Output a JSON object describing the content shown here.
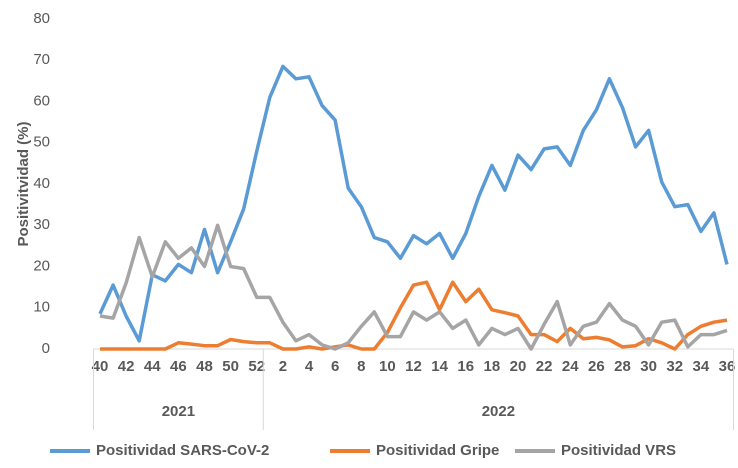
{
  "chart_data": {
    "type": "line",
    "y_label": "Positivitvidad (%)",
    "categories": [
      "40",
      null,
      "42",
      null,
      "44",
      null,
      "46",
      null,
      "48",
      null,
      "50",
      null,
      "52",
      null,
      "2",
      null,
      "4",
      null,
      "6",
      null,
      "8",
      null,
      "10",
      null,
      "12",
      null,
      "14",
      null,
      "16",
      null,
      "18",
      null,
      "20",
      null,
      "22",
      null,
      "24",
      null,
      "26",
      null,
      "28",
      null,
      "30",
      null,
      "32",
      null,
      "34",
      null,
      "36"
    ],
    "x_groups": [
      {
        "label": "2021",
        "count": 13
      },
      {
        "label": "2022",
        "count": 36
      }
    ],
    "series": [
      {
        "name": "Positividad SARS-CoV-2",
        "color": "#5b9bd5",
        "values": [
          8.5,
          15.5,
          8,
          2,
          18,
          16.5,
          20.5,
          18.5,
          29,
          18.5,
          26,
          34,
          48,
          61,
          68.5,
          65.5,
          66,
          59,
          55.5,
          39,
          34.5,
          27,
          26,
          22,
          27.5,
          25.5,
          28,
          22,
          28,
          37,
          44.5,
          38.5,
          47,
          43.5,
          48.5,
          49,
          44.5,
          53,
          58,
          65.5,
          58.5,
          49,
          53,
          40.5,
          34.5,
          35,
          28.5,
          33,
          20.5
        ]
      },
      {
        "name": "Positividad Gripe",
        "color": "#ed7d31",
        "values": [
          0,
          0,
          0,
          0,
          0,
          0,
          1.5,
          1.2,
          0.8,
          0.8,
          2.3,
          1.8,
          1.5,
          1.5,
          0,
          0,
          0.5,
          0,
          0.5,
          1,
          0,
          0,
          4,
          10,
          15.5,
          16.2,
          9.5,
          16.2,
          11.5,
          14.5,
          9.5,
          8.8,
          8,
          3.5,
          3.5,
          1.8,
          5,
          2.5,
          2.8,
          2.2,
          0.5,
          0.8,
          2.5,
          1.5,
          0,
          3.5,
          5.5,
          6.5,
          7
        ]
      },
      {
        "name": "Positividad VRS",
        "color": "#a5a5a5",
        "values": [
          8,
          7.5,
          16,
          27,
          17.5,
          26,
          22,
          24.5,
          20,
          30,
          20,
          19.5,
          12.5,
          12.5,
          6.5,
          2,
          3.5,
          1,
          0,
          1.5,
          5.5,
          9,
          3,
          3,
          9,
          7,
          9,
          5,
          7,
          1,
          5,
          3.5,
          5,
          0,
          6,
          11.5,
          1,
          5.5,
          6.5,
          11,
          7,
          5.5,
          1,
          6.5,
          7,
          0.5,
          3.5,
          3.5,
          4.5
        ]
      }
    ],
    "ylim": [
      0,
      80
    ],
    "yticks": [
      0,
      10,
      20,
      30,
      40,
      50,
      60,
      70,
      80
    ],
    "grid": false,
    "legend": "bottom"
  }
}
